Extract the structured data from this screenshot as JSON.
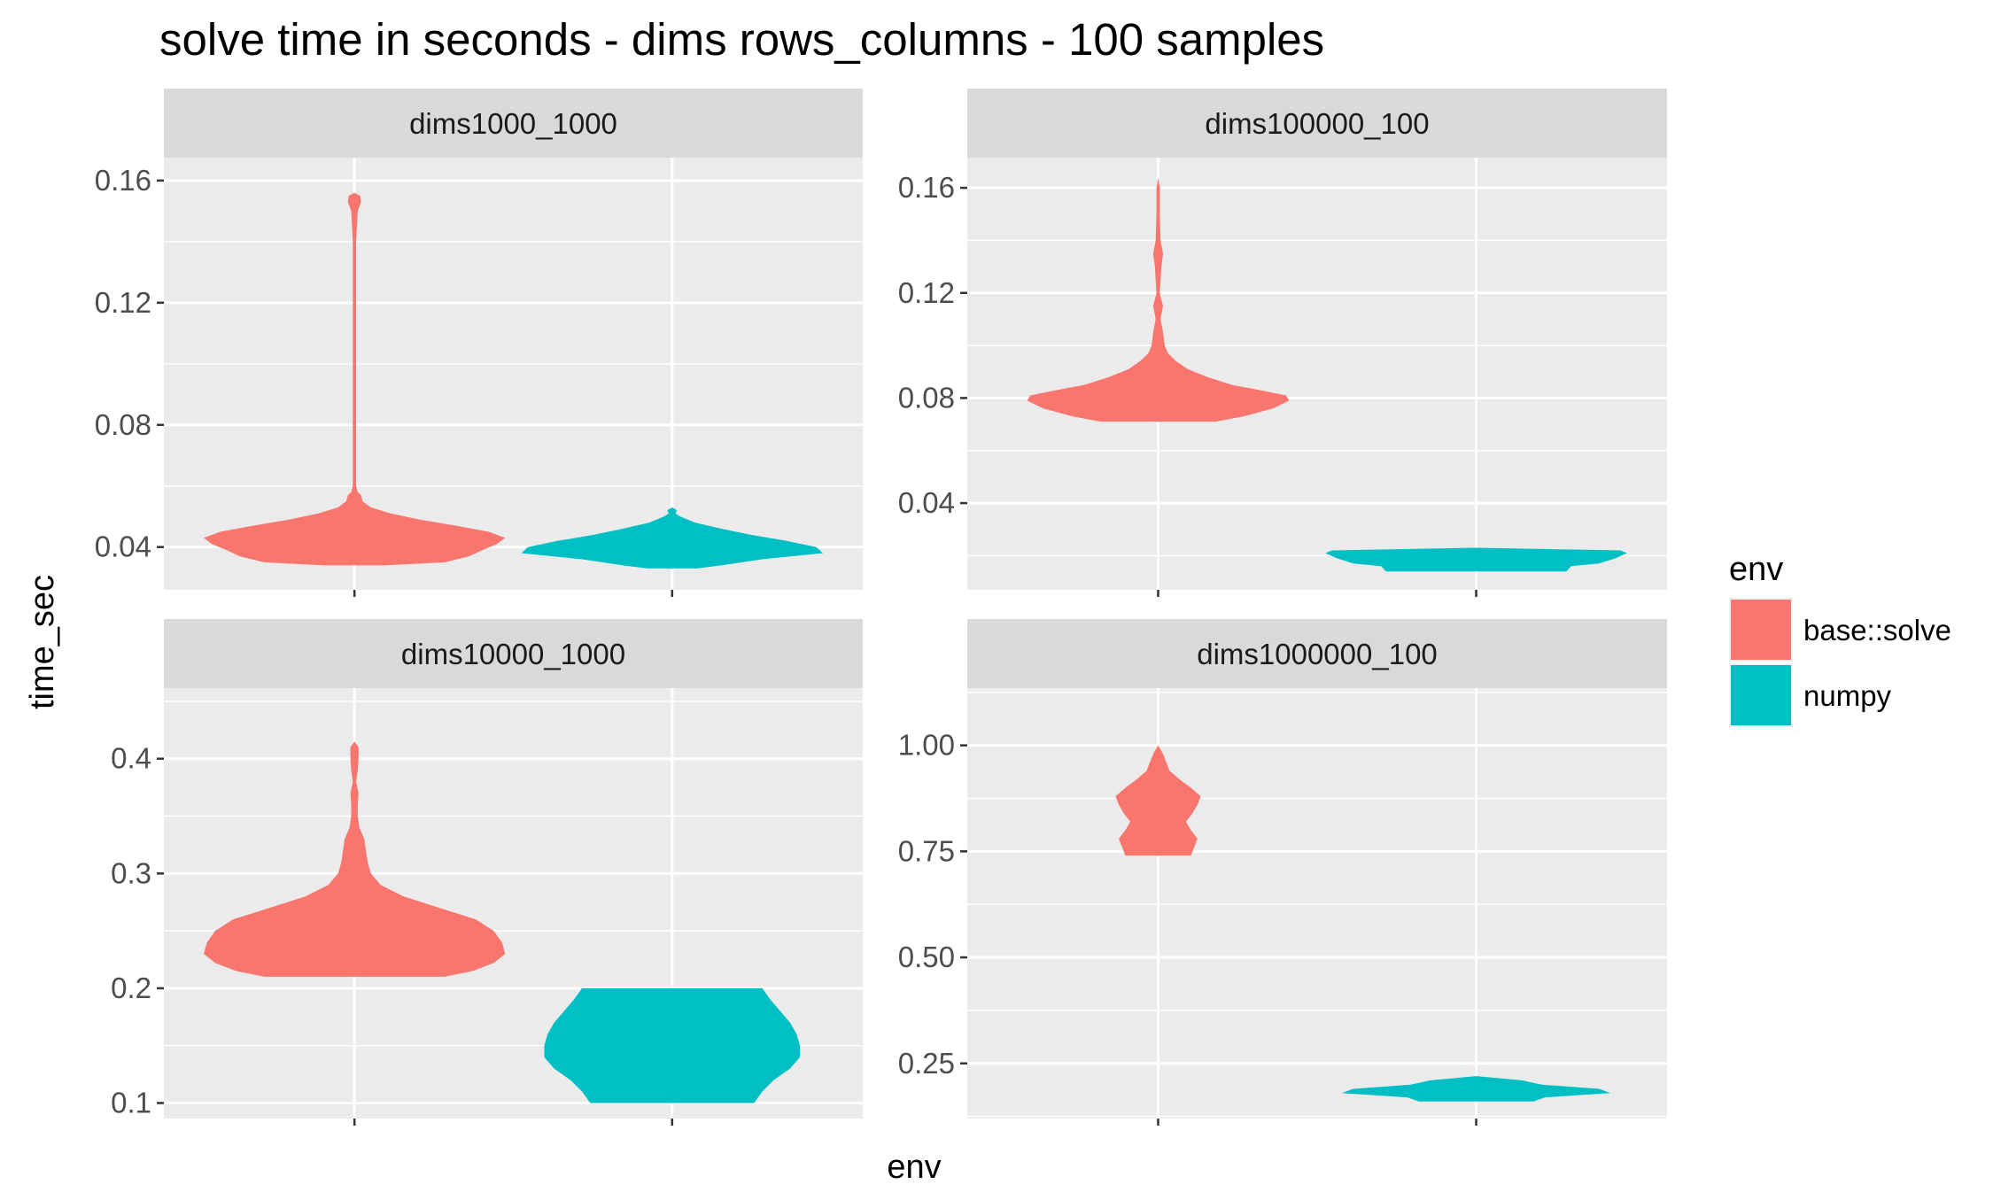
{
  "chart_data": {
    "type": "violin",
    "title": "solve time in seconds - dims rows_columns - 100 samples",
    "xlabel": "env",
    "ylabel": "time_sec",
    "legend": {
      "title": "env",
      "position": "right",
      "items": [
        {
          "label": "base::solve",
          "color": "#F8766D"
        },
        {
          "label": "numpy",
          "color": "#00BFC4"
        }
      ]
    },
    "grid": true,
    "categories": [
      "base::solve",
      "numpy"
    ],
    "facets": [
      {
        "label": "dims1000_1000",
        "ylim": [
          0.026,
          0.1675
        ],
        "yticks": [
          0.04,
          0.08,
          0.12,
          0.16
        ],
        "ytick_labels": [
          "0.04",
          "0.08",
          "0.12",
          "0.16"
        ],
        "violins": [
          {
            "env": "base::solve",
            "profile": [
              [
                0.034,
                0.18
              ],
              [
                0.035,
                0.55
              ],
              [
                0.037,
                0.7
              ],
              [
                0.039,
                0.78
              ],
              [
                0.041,
                0.87
              ],
              [
                0.043,
                0.92
              ],
              [
                0.045,
                0.82
              ],
              [
                0.047,
                0.62
              ],
              [
                0.049,
                0.4
              ],
              [
                0.051,
                0.22
              ],
              [
                0.053,
                0.1
              ],
              [
                0.055,
                0.05
              ],
              [
                0.057,
                0.04
              ],
              [
                0.058,
                0.02
              ],
              [
                0.06,
                0.01
              ],
              [
                0.08,
                0.01
              ],
              [
                0.1,
                0.01
              ],
              [
                0.12,
                0.01
              ],
              [
                0.14,
                0.01
              ],
              [
                0.15,
                0.02
              ],
              [
                0.153,
                0.04
              ],
              [
                0.155,
                0.035
              ],
              [
                0.156,
                0.0
              ]
            ]
          },
          {
            "env": "numpy",
            "profile": [
              [
                0.033,
                0.15
              ],
              [
                0.034,
                0.3
              ],
              [
                0.036,
                0.55
              ],
              [
                0.038,
                0.92
              ],
              [
                0.04,
                0.88
              ],
              [
                0.042,
                0.7
              ],
              [
                0.044,
                0.48
              ],
              [
                0.046,
                0.3
              ],
              [
                0.048,
                0.14
              ],
              [
                0.05,
                0.05
              ],
              [
                0.051,
                0.02
              ],
              [
                0.052,
                0.03
              ],
              [
                0.053,
                0.0
              ]
            ]
          }
        ]
      },
      {
        "label": "dims100000_100",
        "ylim": [
          0.007,
          0.1715
        ],
        "yticks": [
          0.04,
          0.08,
          0.12,
          0.16
        ],
        "ytick_labels": [
          "0.04",
          "0.08",
          "0.12",
          "0.16"
        ],
        "violins": [
          {
            "env": "base::solve",
            "profile": [
              [
                0.071,
                0.35
              ],
              [
                0.073,
                0.52
              ],
              [
                0.076,
                0.7
              ],
              [
                0.079,
                0.8
              ],
              [
                0.081,
                0.78
              ],
              [
                0.083,
                0.62
              ],
              [
                0.085,
                0.45
              ],
              [
                0.088,
                0.3
              ],
              [
                0.091,
                0.18
              ],
              [
                0.094,
                0.11
              ],
              [
                0.097,
                0.06
              ],
              [
                0.1,
                0.04
              ],
              [
                0.105,
                0.03
              ],
              [
                0.11,
                0.015
              ],
              [
                0.115,
                0.03
              ],
              [
                0.12,
                0.01
              ],
              [
                0.125,
                0.015
              ],
              [
                0.13,
                0.02
              ],
              [
                0.135,
                0.03
              ],
              [
                0.14,
                0.015
              ],
              [
                0.15,
                0.01
              ],
              [
                0.16,
                0.01
              ],
              [
                0.164,
                0.0
              ]
            ]
          },
          {
            "env": "numpy",
            "profile": [
              [
                0.014,
                0.55
              ],
              [
                0.016,
                0.58
              ],
              [
                0.017,
                0.75
              ],
              [
                0.019,
                0.85
              ],
              [
                0.021,
                0.92
              ],
              [
                0.022,
                0.88
              ],
              [
                0.023,
                0.0
              ]
            ]
          }
        ]
      },
      {
        "label": "dims10000_1000",
        "ylim": [
          0.0865,
          0.4615
        ],
        "yticks": [
          0.1,
          0.2,
          0.3,
          0.4
        ],
        "ytick_labels": [
          "0.1",
          "0.2",
          "0.3",
          "0.4"
        ],
        "violins": [
          {
            "env": "base::solve",
            "profile": [
              [
                0.21,
                0.55
              ],
              [
                0.215,
                0.72
              ],
              [
                0.222,
                0.85
              ],
              [
                0.23,
                0.92
              ],
              [
                0.24,
                0.9
              ],
              [
                0.25,
                0.85
              ],
              [
                0.26,
                0.74
              ],
              [
                0.27,
                0.52
              ],
              [
                0.28,
                0.3
              ],
              [
                0.29,
                0.16
              ],
              [
                0.3,
                0.1
              ],
              [
                0.31,
                0.08
              ],
              [
                0.32,
                0.07
              ],
              [
                0.33,
                0.06
              ],
              [
                0.34,
                0.03
              ],
              [
                0.35,
                0.02
              ],
              [
                0.36,
                0.02
              ],
              [
                0.37,
                0.025
              ],
              [
                0.38,
                0.01
              ],
              [
                0.39,
                0.02
              ],
              [
                0.4,
                0.025
              ],
              [
                0.41,
                0.025
              ],
              [
                0.415,
                0.0
              ]
            ]
          },
          {
            "env": "numpy",
            "profile": [
              [
                0.1,
                0.5
              ],
              [
                0.11,
                0.55
              ],
              [
                0.12,
                0.62
              ],
              [
                0.13,
                0.72
              ],
              [
                0.14,
                0.78
              ],
              [
                0.15,
                0.78
              ],
              [
                0.16,
                0.76
              ],
              [
                0.17,
                0.72
              ],
              [
                0.18,
                0.66
              ],
              [
                0.19,
                0.6
              ],
              [
                0.2,
                0.55
              ]
            ]
          }
        ]
      },
      {
        "label": "dims1000000_100",
        "ylim": [
          0.12,
          1.135
        ],
        "yticks": [
          0.25,
          0.5,
          0.75,
          1.0
        ],
        "ytick_labels": [
          "0.25",
          "0.50",
          "0.75",
          "1.00"
        ],
        "violins": [
          {
            "env": "base::solve",
            "profile": [
              [
                0.74,
                0.2
              ],
              [
                0.76,
                0.22
              ],
              [
                0.78,
                0.24
              ],
              [
                0.8,
                0.2
              ],
              [
                0.82,
                0.17
              ],
              [
                0.84,
                0.21
              ],
              [
                0.86,
                0.24
              ],
              [
                0.88,
                0.26
              ],
              [
                0.9,
                0.2
              ],
              [
                0.92,
                0.13
              ],
              [
                0.94,
                0.07
              ],
              [
                0.96,
                0.05
              ],
              [
                0.98,
                0.03
              ],
              [
                1.0,
                0.0
              ]
            ]
          },
          {
            "env": "numpy",
            "profile": [
              [
                0.16,
                0.35
              ],
              [
                0.17,
                0.42
              ],
              [
                0.18,
                0.82
              ],
              [
                0.19,
                0.75
              ],
              [
                0.2,
                0.4
              ],
              [
                0.21,
                0.28
              ],
              [
                0.22,
                0.0
              ]
            ]
          }
        ]
      }
    ]
  }
}
